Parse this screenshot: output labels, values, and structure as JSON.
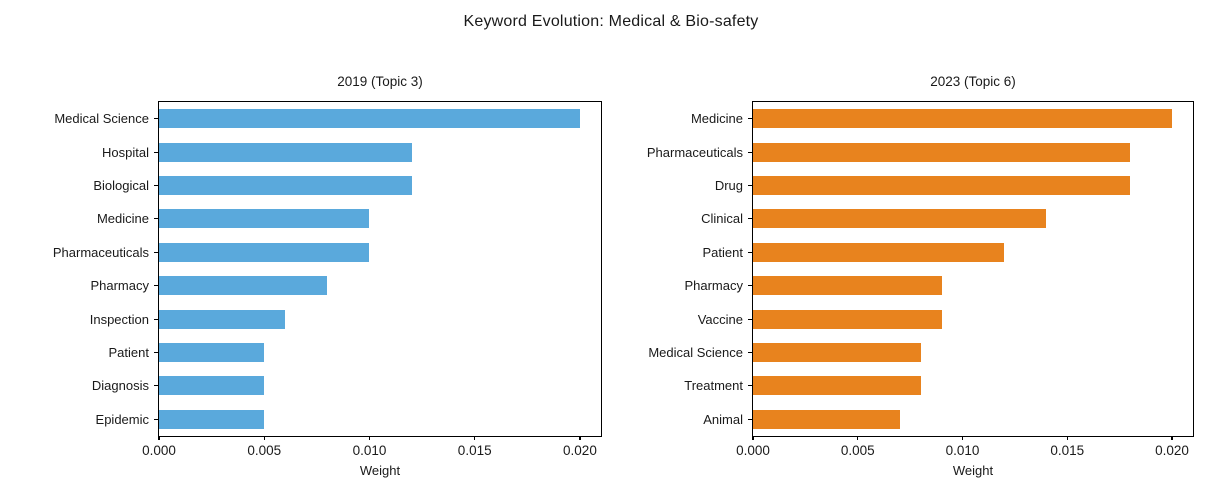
{
  "figure_title": "Keyword Evolution: Medical & Bio-safety",
  "colors": {
    "bar_2019": "#5AA9DC",
    "bar_2023": "#E8831E",
    "axis": "#000000",
    "text": "#1a1a1a"
  },
  "chart_data": [
    {
      "type": "bar",
      "orientation": "horizontal",
      "title": "2019 (Topic 3)",
      "categories": [
        "Medical Science",
        "Hospital",
        "Biological",
        "Medicine",
        "Pharmaceuticals",
        "Pharmacy",
        "Inspection",
        "Patient",
        "Diagnosis",
        "Epidemic"
      ],
      "values": [
        0.02,
        0.012,
        0.012,
        0.01,
        0.01,
        0.008,
        0.006,
        0.005,
        0.005,
        0.005
      ],
      "xlabel": "Weight",
      "xlim": [
        0,
        0.021
      ],
      "xticks": [
        0.0,
        0.005,
        0.01,
        0.015,
        0.02
      ],
      "xtick_decimals": 3,
      "bar_color": "#5AA9DC",
      "grid": false,
      "legend": null
    },
    {
      "type": "bar",
      "orientation": "horizontal",
      "title": "2023 (Topic 6)",
      "categories": [
        "Medicine",
        "Pharmaceuticals",
        "Drug",
        "Clinical",
        "Patient",
        "Pharmacy",
        "Vaccine",
        "Medical Science",
        "Treatment",
        "Animal"
      ],
      "values": [
        0.02,
        0.018,
        0.018,
        0.014,
        0.012,
        0.009,
        0.009,
        0.008,
        0.008,
        0.007
      ],
      "xlabel": "Weight",
      "xlim": [
        0,
        0.021
      ],
      "xticks": [
        0.0,
        0.005,
        0.01,
        0.015,
        0.02
      ],
      "xtick_decimals": 3,
      "bar_color": "#E8831E",
      "grid": false,
      "legend": null
    }
  ]
}
